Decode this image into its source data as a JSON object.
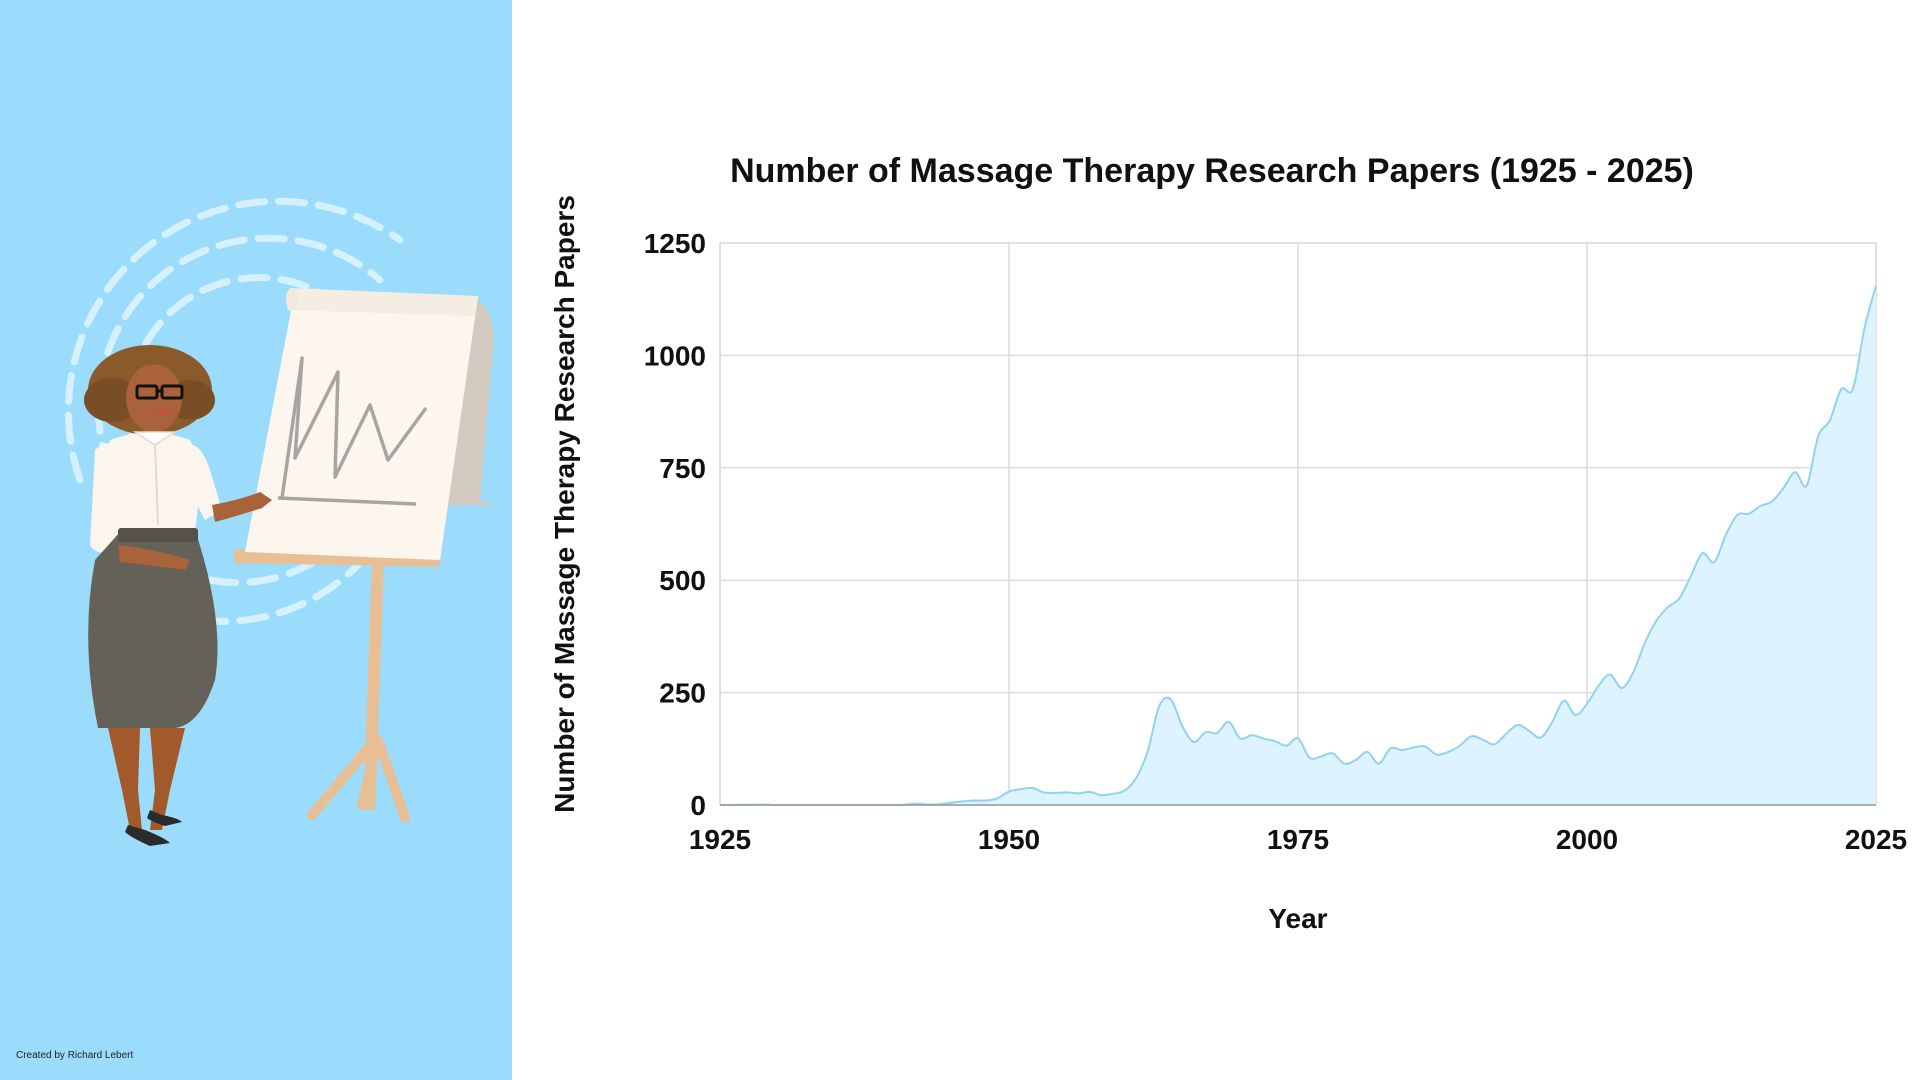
{
  "credit": "Created by Richard Lebert",
  "colors": {
    "panel_background": "#9bdcfd",
    "area_fill": "#ddf3fd",
    "area_line": "#8fd3f3",
    "grid": "#dcdcdc"
  },
  "chart_data": {
    "type": "area",
    "title": "Number of Massage Therapy Research Papers (1925 - 2025)",
    "xlabel": "Year",
    "ylabel": "Number of Massage Therapy Research Papers",
    "xlim": [
      1925,
      2025
    ],
    "ylim": [
      0,
      1250
    ],
    "xticks": [
      1925,
      1950,
      1975,
      2000,
      2025
    ],
    "yticks": [
      0,
      250,
      500,
      750,
      1000,
      1250
    ],
    "grid": true,
    "legend": "none",
    "series": [
      {
        "x": [
          1925,
          1929,
          1930,
          1935,
          1940,
          1941,
          1942,
          1943,
          1944,
          1945,
          1946,
          1947,
          1948,
          1949,
          1950,
          1951,
          1952,
          1953,
          1954,
          1955,
          1956,
          1957,
          1958,
          1959,
          1960,
          1961,
          1962,
          1963,
          1964,
          1965,
          1966,
          1967,
          1968,
          1969,
          1970,
          1971,
          1972,
          1973,
          1974,
          1975,
          1976,
          1977,
          1978,
          1979,
          1980,
          1981,
          1982,
          1983,
          1984,
          1985,
          1986,
          1987,
          1988,
          1989,
          1990,
          1991,
          1992,
          1993,
          1994,
          1995,
          1996,
          1997,
          1998,
          1999,
          2000,
          2001,
          2002,
          2003,
          2004,
          2005,
          2006,
          2007,
          2008,
          2009,
          2010,
          2011,
          2012,
          2013,
          2014,
          2015,
          2016,
          2017,
          2018,
          2019,
          2020,
          2021,
          2022,
          2023,
          2024,
          2025
        ],
        "values": [
          0,
          1,
          0,
          0,
          0,
          1,
          3,
          1,
          2,
          5,
          8,
          10,
          10,
          15,
          30,
          35,
          38,
          28,
          27,
          28,
          26,
          29,
          22,
          25,
          32,
          60,
          120,
          220,
          235,
          175,
          140,
          162,
          160,
          185,
          148,
          155,
          148,
          142,
          132,
          148,
          105,
          108,
          115,
          92,
          100,
          118,
          92,
          126,
          122,
          128,
          130,
          112,
          118,
          132,
          153,
          145,
          135,
          158,
          178,
          165,
          150,
          185,
          232,
          200,
          225,
          265,
          290,
          260,
          295,
          360,
          410,
          440,
          460,
          510,
          560,
          540,
          600,
          645,
          648,
          665,
          675,
          705,
          740,
          710,
          820,
          855,
          925,
          925,
          1060,
          1155
        ]
      }
    ]
  }
}
